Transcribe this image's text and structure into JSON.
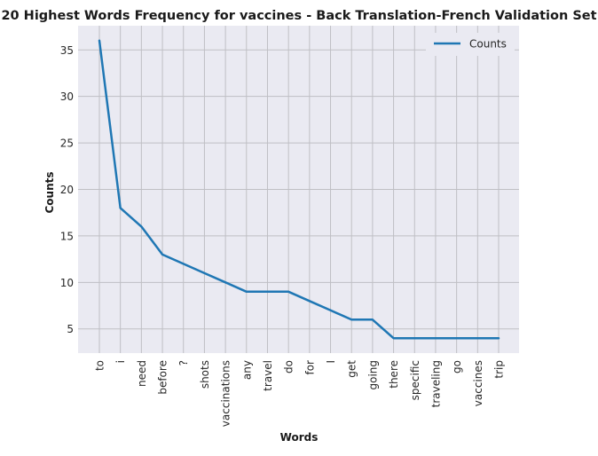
{
  "chart_data": {
    "type": "line",
    "title": "20 Highest Words Frequency for vaccines - Back Translation-French Validation Set",
    "xlabel": "Words",
    "ylabel": "Counts",
    "categories": [
      "to",
      "i",
      "need",
      "before",
      "?",
      "shots",
      "vaccinations",
      "any",
      "travel",
      "do",
      "for",
      "I",
      "get",
      "going",
      "there",
      "specific",
      "traveling",
      "go",
      "vaccines",
      "trip"
    ],
    "series": [
      {
        "name": "Counts",
        "values": [
          36,
          18,
          16,
          13,
          12,
          11,
          10,
          9,
          9,
          9,
          8,
          7,
          6,
          6,
          4,
          4,
          4,
          4,
          4,
          4
        ],
        "color": "#1f77b4"
      }
    ],
    "yticks": [
      5,
      10,
      15,
      20,
      25,
      30,
      35
    ],
    "ylim": [
      2.4,
      37.6
    ],
    "grid": true,
    "legend": "top-right",
    "colors": {
      "plot_background": "#eaeaf2",
      "grid": "#bfbfc4",
      "line": "#1f77b4"
    }
  }
}
